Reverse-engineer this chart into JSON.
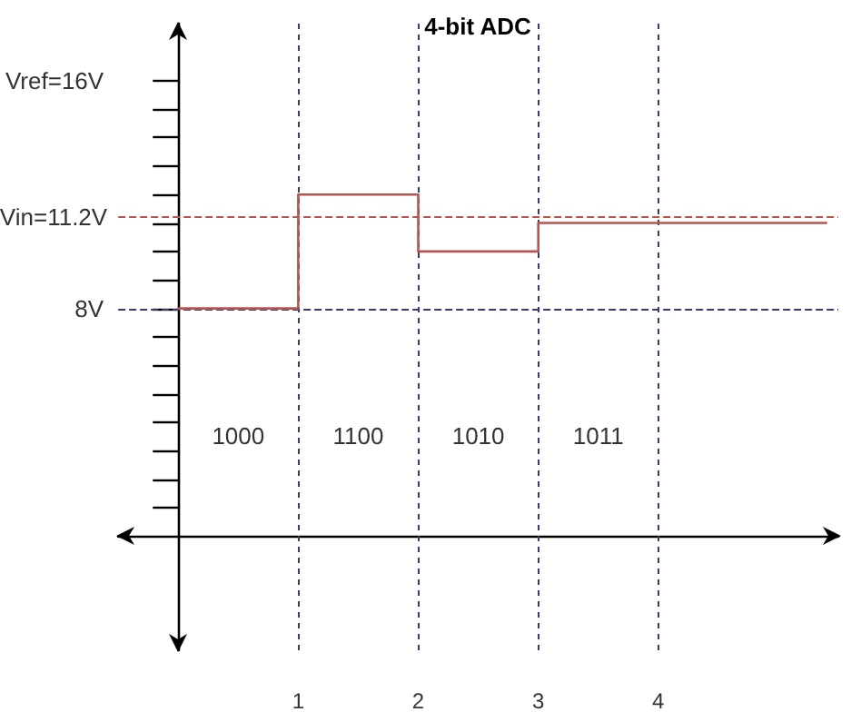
{
  "chart_data": {
    "type": "step",
    "title": "4-bit ADC",
    "x": [
      0,
      1,
      2,
      3,
      5.4
    ],
    "series": [
      {
        "color": "#b85450",
        "values": [
          8,
          12,
          10,
          11,
          11
        ]
      }
    ],
    "xlim": [
      -0.5,
      5.5
    ],
    "xticks": [
      1,
      2,
      3,
      4
    ],
    "ylim": [
      -4,
      18
    ],
    "yticks": [
      {
        "value": 1,
        "label": null
      },
      {
        "value": 2,
        "label": null
      },
      {
        "value": 3,
        "label": null
      },
      {
        "value": 4,
        "label": null
      },
      {
        "value": 5,
        "label": null
      },
      {
        "value": 6,
        "label": null
      },
      {
        "value": 7,
        "label": null
      },
      {
        "value": 8,
        "label": "8V"
      },
      {
        "value": 9,
        "label": null
      },
      {
        "value": 10,
        "label": null
      },
      {
        "value": 11,
        "label": null
      },
      {
        "value": 12,
        "label": null
      },
      {
        "value": 13,
        "label": null
      },
      {
        "value": 14,
        "label": null
      },
      {
        "value": 15,
        "label": null
      },
      {
        "value": 16,
        "label": "Vref=16V"
      }
    ],
    "ref_lines": [
      {
        "axis": "y",
        "value": 11.2,
        "label": "Vin=11.2V",
        "color": "#b85450",
        "line_style": "dashed"
      },
      {
        "axis": "y",
        "value": 8,
        "color": "#3a3a6a",
        "line_style": "dashed"
      },
      {
        "axis": "x",
        "value": 1,
        "color": "#3a3a6a",
        "line_style": "dotted"
      },
      {
        "axis": "x",
        "value": 2,
        "color": "#3a3a6a",
        "line_style": "dotted"
      },
      {
        "axis": "x",
        "value": 3,
        "color": "#3a3a6a",
        "line_style": "dotted"
      },
      {
        "axis": "x",
        "value": 4,
        "color": "#3a3a6a",
        "line_style": "dotted"
      }
    ],
    "annotations": [
      "1000",
      "1100",
      "1010",
      "1011"
    ],
    "grid": false,
    "marker": "none",
    "line_style": "solid"
  }
}
